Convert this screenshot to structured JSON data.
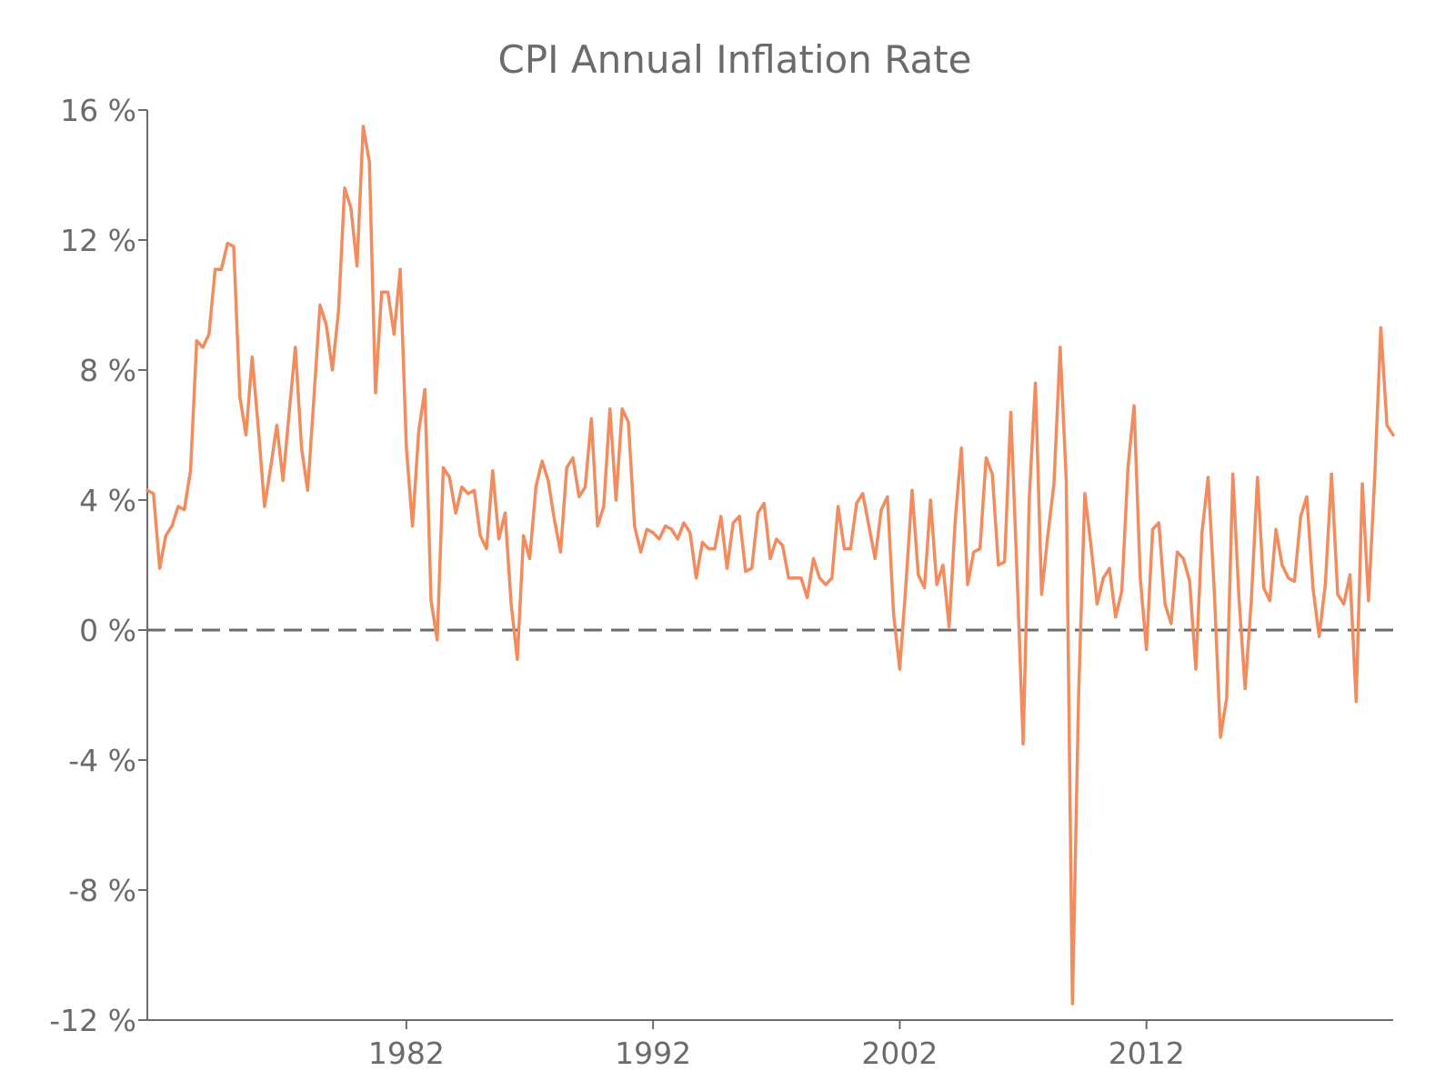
{
  "chart_data": {
    "type": "line",
    "title": "CPI Annual Inflation Rate",
    "xlabel": "",
    "ylabel": "",
    "xlim": [
      1971.5,
      2022.0
    ],
    "ylim": [
      -12,
      16
    ],
    "grid": false,
    "legend": "none",
    "zero_line": {
      "y": 0,
      "style": "dashed",
      "color": "#6b6b6b"
    },
    "x_ticks": [
      {
        "value": 1982,
        "label": "1982"
      },
      {
        "value": 1992,
        "label": "1992"
      },
      {
        "value": 2002,
        "label": "2002"
      },
      {
        "value": 2012,
        "label": "2012"
      }
    ],
    "y_ticks": [
      {
        "value": 16,
        "label": "16 %"
      },
      {
        "value": 12,
        "label": "12 %"
      },
      {
        "value": 8,
        "label": "8 %"
      },
      {
        "value": 4,
        "label": "4 %"
      },
      {
        "value": 0,
        "label": "0 %"
      },
      {
        "value": -4,
        "label": "-4 %"
      },
      {
        "value": -8,
        "label": "-8 %"
      },
      {
        "value": -12,
        "label": "-12 %"
      }
    ],
    "series": [
      {
        "color": "#f28c5e",
        "points": [
          [
            1971.5,
            4.3
          ],
          [
            1971.75,
            4.2
          ],
          [
            1972.0,
            1.9
          ],
          [
            1972.25,
            2.9
          ],
          [
            1972.5,
            3.2
          ],
          [
            1972.75,
            3.8
          ],
          [
            1973.0,
            3.7
          ],
          [
            1973.25,
            4.9
          ],
          [
            1973.5,
            8.9
          ],
          [
            1973.75,
            8.7
          ],
          [
            1974.0,
            9.1
          ],
          [
            1974.25,
            11.1
          ],
          [
            1974.5,
            11.1
          ],
          [
            1974.75,
            11.9
          ],
          [
            1975.0,
            11.8
          ],
          [
            1975.25,
            7.2
          ],
          [
            1975.5,
            6.0
          ],
          [
            1975.75,
            8.4
          ],
          [
            1976.0,
            6.2
          ],
          [
            1976.25,
            3.8
          ],
          [
            1976.5,
            5.0
          ],
          [
            1976.75,
            6.3
          ],
          [
            1977.0,
            4.6
          ],
          [
            1977.25,
            6.7
          ],
          [
            1977.5,
            8.7
          ],
          [
            1977.75,
            5.6
          ],
          [
            1978.0,
            4.3
          ],
          [
            1978.25,
            7.1
          ],
          [
            1978.5,
            10.0
          ],
          [
            1978.75,
            9.4
          ],
          [
            1979.0,
            8.0
          ],
          [
            1979.25,
            9.8
          ],
          [
            1979.5,
            13.6
          ],
          [
            1979.75,
            13.0
          ],
          [
            1980.0,
            11.2
          ],
          [
            1980.25,
            15.5
          ],
          [
            1980.5,
            14.4
          ],
          [
            1980.75,
            7.3
          ],
          [
            1981.0,
            10.4
          ],
          [
            1981.25,
            10.4
          ],
          [
            1981.5,
            9.1
          ],
          [
            1981.75,
            11.1
          ],
          [
            1982.0,
            5.6
          ],
          [
            1982.25,
            3.2
          ],
          [
            1982.5,
            6.1
          ],
          [
            1982.75,
            7.4
          ],
          [
            1983.0,
            0.9
          ],
          [
            1983.25,
            -0.3
          ],
          [
            1983.5,
            5.0
          ],
          [
            1983.75,
            4.7
          ],
          [
            1984.0,
            3.6
          ],
          [
            1984.25,
            4.4
          ],
          [
            1984.5,
            4.2
          ],
          [
            1984.75,
            4.3
          ],
          [
            1985.0,
            2.9
          ],
          [
            1985.25,
            2.5
          ],
          [
            1985.5,
            4.9
          ],
          [
            1985.75,
            2.8
          ],
          [
            1986.0,
            3.6
          ],
          [
            1986.25,
            0.8
          ],
          [
            1986.5,
            -0.9
          ],
          [
            1986.75,
            2.9
          ],
          [
            1987.0,
            2.2
          ],
          [
            1987.25,
            4.4
          ],
          [
            1987.5,
            5.2
          ],
          [
            1987.75,
            4.6
          ],
          [
            1988.0,
            3.4
          ],
          [
            1988.25,
            2.4
          ],
          [
            1988.5,
            5.0
          ],
          [
            1988.75,
            5.3
          ],
          [
            1989.0,
            4.1
          ],
          [
            1989.25,
            4.4
          ],
          [
            1989.5,
            6.5
          ],
          [
            1989.75,
            3.2
          ],
          [
            1990.0,
            3.8
          ],
          [
            1990.25,
            6.8
          ],
          [
            1990.5,
            4.0
          ],
          [
            1990.75,
            6.8
          ],
          [
            1991.0,
            6.4
          ],
          [
            1991.25,
            3.2
          ],
          [
            1991.5,
            2.4
          ],
          [
            1991.75,
            3.1
          ],
          [
            1992.0,
            3.0
          ],
          [
            1992.25,
            2.8
          ],
          [
            1992.5,
            3.2
          ],
          [
            1992.75,
            3.1
          ],
          [
            1993.0,
            2.8
          ],
          [
            1993.25,
            3.3
          ],
          [
            1993.5,
            3.0
          ],
          [
            1993.75,
            1.6
          ],
          [
            1994.0,
            2.7
          ],
          [
            1994.25,
            2.5
          ],
          [
            1994.5,
            2.5
          ],
          [
            1994.75,
            3.5
          ],
          [
            1995.0,
            1.9
          ],
          [
            1995.25,
            3.3
          ],
          [
            1995.5,
            3.5
          ],
          [
            1995.75,
            1.8
          ],
          [
            1996.0,
            1.9
          ],
          [
            1996.25,
            3.6
          ],
          [
            1996.5,
            3.9
          ],
          [
            1996.75,
            2.2
          ],
          [
            1997.0,
            2.8
          ],
          [
            1997.25,
            2.6
          ],
          [
            1997.5,
            1.6
          ],
          [
            1997.75,
            1.6
          ],
          [
            1998.0,
            1.6
          ],
          [
            1998.25,
            1.0
          ],
          [
            1998.5,
            2.2
          ],
          [
            1998.75,
            1.6
          ],
          [
            1999.0,
            1.4
          ],
          [
            1999.25,
            1.6
          ],
          [
            1999.5,
            3.8
          ],
          [
            1999.75,
            2.5
          ],
          [
            2000.0,
            2.5
          ],
          [
            2000.25,
            3.9
          ],
          [
            2000.5,
            4.2
          ],
          [
            2000.75,
            3.2
          ],
          [
            2001.0,
            2.2
          ],
          [
            2001.25,
            3.7
          ],
          [
            2001.5,
            4.1
          ],
          [
            2001.75,
            0.5
          ],
          [
            2002.0,
            -1.2
          ],
          [
            2002.25,
            1.4
          ],
          [
            2002.5,
            4.3
          ],
          [
            2002.75,
            1.7
          ],
          [
            2003.0,
            1.3
          ],
          [
            2003.25,
            4.0
          ],
          [
            2003.5,
            1.4
          ],
          [
            2003.75,
            2.0
          ],
          [
            2004.0,
            0.1
          ],
          [
            2004.25,
            3.4
          ],
          [
            2004.5,
            5.6
          ],
          [
            2004.75,
            1.4
          ],
          [
            2005.0,
            2.4
          ],
          [
            2005.25,
            2.5
          ],
          [
            2005.5,
            5.3
          ],
          [
            2005.75,
            4.8
          ],
          [
            2006.0,
            2.0
          ],
          [
            2006.25,
            2.1
          ],
          [
            2006.5,
            6.7
          ],
          [
            2006.75,
            1.8
          ],
          [
            2007.0,
            -3.5
          ],
          [
            2007.25,
            4.1
          ],
          [
            2007.5,
            7.6
          ],
          [
            2007.75,
            1.1
          ],
          [
            2008.0,
            2.9
          ],
          [
            2008.25,
            4.5
          ],
          [
            2008.5,
            8.7
          ],
          [
            2008.75,
            4.6
          ],
          [
            2009.0,
            -11.5
          ],
          [
            2009.25,
            -2.0
          ],
          [
            2009.5,
            4.2
          ],
          [
            2009.75,
            2.6
          ],
          [
            2010.0,
            0.8
          ],
          [
            2010.25,
            1.6
          ],
          [
            2010.5,
            1.9
          ],
          [
            2010.75,
            0.4
          ],
          [
            2011.0,
            1.2
          ],
          [
            2011.25,
            5.0
          ],
          [
            2011.5,
            6.9
          ],
          [
            2011.75,
            1.6
          ],
          [
            2012.0,
            -0.6
          ],
          [
            2012.25,
            3.1
          ],
          [
            2012.5,
            3.3
          ],
          [
            2012.75,
            0.8
          ],
          [
            2013.0,
            0.2
          ],
          [
            2013.25,
            2.4
          ],
          [
            2013.5,
            2.2
          ],
          [
            2013.75,
            1.5
          ],
          [
            2014.0,
            -1.2
          ],
          [
            2014.25,
            3.0
          ],
          [
            2014.5,
            4.7
          ],
          [
            2014.75,
            1.2
          ],
          [
            2015.0,
            -3.3
          ],
          [
            2015.25,
            -2.1
          ],
          [
            2015.5,
            4.8
          ],
          [
            2015.75,
            1.0
          ],
          [
            2016.0,
            -1.8
          ],
          [
            2016.25,
            0.9
          ],
          [
            2016.5,
            4.7
          ],
          [
            2016.75,
            1.3
          ],
          [
            2017.0,
            0.9
          ],
          [
            2017.25,
            3.1
          ],
          [
            2017.5,
            2.0
          ],
          [
            2017.75,
            1.6
          ],
          [
            2018.0,
            1.5
          ],
          [
            2018.25,
            3.5
          ],
          [
            2018.5,
            4.1
          ],
          [
            2018.75,
            1.3
          ],
          [
            2019.0,
            -0.2
          ],
          [
            2019.25,
            1.4
          ],
          [
            2019.5,
            4.8
          ],
          [
            2019.75,
            1.1
          ],
          [
            2020.0,
            0.8
          ],
          [
            2020.25,
            1.7
          ],
          [
            2020.5,
            -2.2
          ],
          [
            2020.75,
            4.5
          ],
          [
            2021.0,
            0.9
          ],
          [
            2021.25,
            4.7
          ],
          [
            2021.5,
            9.3
          ],
          [
            2021.75,
            6.3
          ],
          [
            2022.0,
            6.0
          ]
        ]
      }
    ]
  }
}
